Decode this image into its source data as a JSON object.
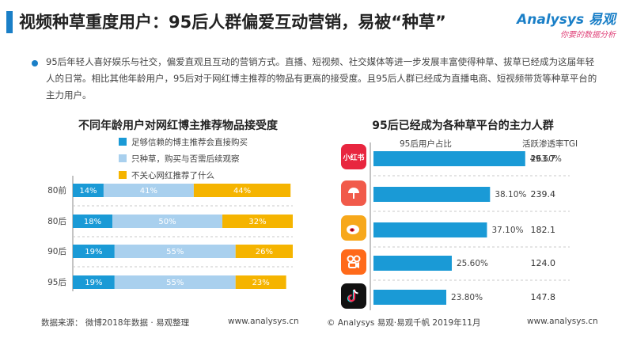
{
  "header": {
    "title": "视频种草重度用户：95后人群偏爱互动营销，易被“种草”",
    "logo_main": "Analysys 易观",
    "logo_sub": "你要的数据分析"
  },
  "intro_text": "95后年轻人喜好娱乐与社交，偏爱直观且互动的营销方式。直播、短视频、社交媒体等进一步发展丰富使得种草、拔草已经成为这届年轻人的日常。相比其他年龄用户，95后对于网红博主推荐的物品有更高的接受度。且95后人群已经成为直播电商、短视频带货等种草平台的主力用户。",
  "chart_data": [
    {
      "type": "bar",
      "stacked": true,
      "orientation": "horizontal",
      "title": "不同年龄用户对网红博主推荐物品接受度",
      "categories": [
        "80前",
        "80后",
        "90后",
        "95后"
      ],
      "series": [
        {
          "name": "足够信赖的博主推荐会直接购买",
          "values": [
            14,
            18,
            19,
            19
          ],
          "color": "#1a9ad6"
        },
        {
          "name": "只种草，购买与否需后续观察",
          "values": [
            41,
            50,
            55,
            55
          ],
          "color": "#a9d0ee"
        },
        {
          "name": "不关心网红推荐了什么",
          "values": [
            44,
            32,
            26,
            23
          ],
          "color": "#f5b400"
        }
      ],
      "xlim": [
        0,
        100
      ],
      "legend": "top"
    },
    {
      "type": "bar",
      "orientation": "horizontal",
      "title": "95后已经成为各种草平台的主力人群",
      "categories": [
        "小红书",
        "大众点评",
        "微博",
        "快手",
        "抖音"
      ],
      "series": [
        {
          "name": "95后用户占比",
          "values": [
            49.6,
            38.1,
            37.1,
            25.6,
            23.8
          ],
          "color": "#1a9ad6"
        }
      ],
      "tgi_header": "活跃渗透率TGI",
      "tgi": [
        263.7,
        239.4,
        182.1,
        124.0,
        147.8
      ],
      "xlim": [
        0,
        60
      ]
    }
  ],
  "left_labels": {
    "categories": [
      "80前",
      "80后",
      "90后",
      "95后"
    ],
    "percents": [
      [
        "14%",
        "41%",
        "44%"
      ],
      [
        "18%",
        "50%",
        "32%"
      ],
      [
        "19%",
        "55%",
        "26%"
      ],
      [
        "19%",
        "55%",
        "23%"
      ]
    ]
  },
  "right_labels": {
    "percents": [
      "49.60%",
      "38.10%",
      "37.10%",
      "25.60%",
      "23.80%"
    ],
    "tgi": [
      "263.7",
      "239.4",
      "182.1",
      "124.0",
      "147.8"
    ]
  },
  "apps": [
    {
      "name": "xiaohongshu-icon",
      "label": "小红书",
      "color": "#e8263f"
    },
    {
      "name": "dianping-icon",
      "label": "",
      "color": "#f15a4a"
    },
    {
      "name": "weibo-icon",
      "label": "",
      "color": "#f7a81b"
    },
    {
      "name": "kuaishou-icon",
      "label": "",
      "color": "#ff6a1a"
    },
    {
      "name": "douyin-icon",
      "label": "",
      "color": "#111111"
    }
  ],
  "footer": {
    "source": "数据来源：  微博2018年数据 · 易观整理",
    "site_left": "www.analysys.cn",
    "copyright": "© Analysys 易观·易观千帆 2019年11月",
    "site_right": "www.analysys.cn"
  }
}
